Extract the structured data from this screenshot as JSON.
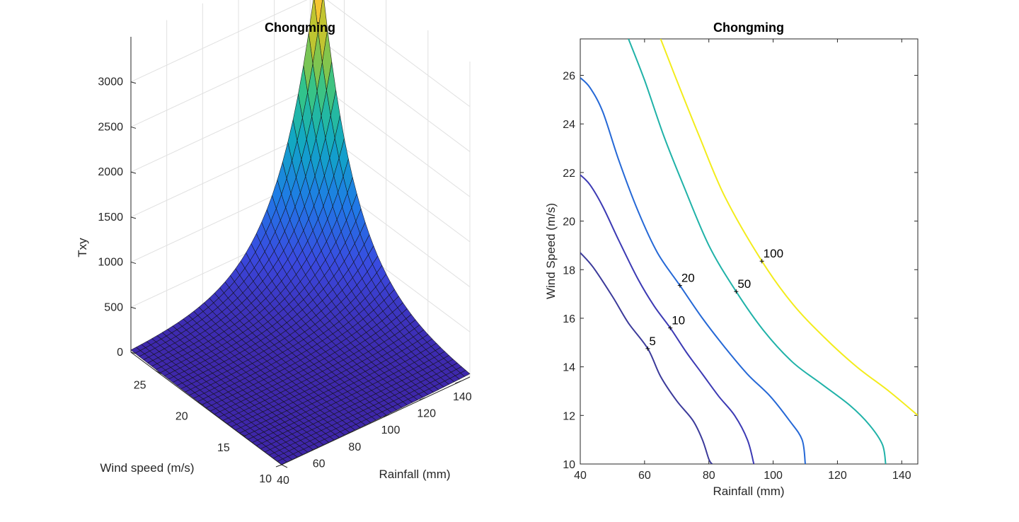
{
  "chart_data": [
    {
      "type": "surface",
      "title": "Chongming",
      "xlabel": "Rainfall (mm)",
      "ylabel": "Wind speed (m/s)",
      "zlabel": "Txy",
      "xlim": [
        40,
        145
      ],
      "ylim": [
        10,
        28
      ],
      "zlim": [
        0,
        3500
      ],
      "x_ticks": [
        "40",
        "60",
        "80",
        "100",
        "120",
        "140"
      ],
      "y_ticks": [
        "10",
        "15",
        "20",
        "25"
      ],
      "z_ticks": [
        "0",
        "500",
        "1000",
        "1500",
        "2000",
        "2500",
        "3000"
      ],
      "z_corner_values": {
        "x_min_y_min": 2,
        "x_max_y_min": 35,
        "x_min_y_max": 25,
        "x_max_y_max": 3450
      },
      "colormap": [
        "#3E26A8",
        "#3A4AE0",
        "#1F7BE6",
        "#11A6C6",
        "#2EC38E",
        "#A9C630",
        "#F5C333",
        "#F9E51A"
      ],
      "grid": true
    },
    {
      "type": "contour",
      "title": "Chongming",
      "xlabel": "Rainfall (mm)",
      "ylabel": "Wind Speed (m/s)",
      "xlim": [
        40,
        145
      ],
      "ylim": [
        10,
        27.5
      ],
      "x_ticks": [
        "40",
        "60",
        "80",
        "100",
        "120",
        "140"
      ],
      "y_ticks": [
        "10",
        "12",
        "14",
        "16",
        "18",
        "20",
        "22",
        "24",
        "26"
      ],
      "levels": [
        {
          "label": "5",
          "color": "#3B3A9A",
          "label_at": [
            61,
            14.75
          ],
          "points": [
            [
              40,
              18.7
            ],
            [
              44,
              18.1
            ],
            [
              50,
              16.9
            ],
            [
              55,
              15.8
            ],
            [
              61,
              14.75
            ],
            [
              65,
              13.6
            ],
            [
              70,
              12.6
            ],
            [
              75,
              11.8
            ],
            [
              78,
              11.0
            ],
            [
              80,
              10.2
            ],
            [
              81,
              10.0
            ]
          ]
        },
        {
          "label": "10",
          "color": "#3C3AB4",
          "label_at": [
            68,
            15.6
          ],
          "points": [
            [
              40,
              21.9
            ],
            [
              43,
              21.5
            ],
            [
              47,
              20.6
            ],
            [
              52,
              19.2
            ],
            [
              58,
              17.6
            ],
            [
              63,
              16.5
            ],
            [
              68,
              15.6
            ],
            [
              73,
              14.6
            ],
            [
              78,
              13.7
            ],
            [
              83,
              12.8
            ],
            [
              88,
              12.0
            ],
            [
              92,
              11.0
            ],
            [
              94,
              10.0
            ]
          ]
        },
        {
          "label": "20",
          "color": "#2568D6",
          "label_at": [
            71,
            17.35
          ],
          "points": [
            [
              40,
              25.9
            ],
            [
              43,
              25.5
            ],
            [
              47,
              24.5
            ],
            [
              52,
              22.5
            ],
            [
              58,
              20.4
            ],
            [
              64,
              18.7
            ],
            [
              71,
              17.35
            ],
            [
              78,
              16.0
            ],
            [
              85,
              14.8
            ],
            [
              92,
              13.7
            ],
            [
              99,
              12.8
            ],
            [
              105,
              11.8
            ],
            [
              109,
              11.0
            ],
            [
              110,
              10.0
            ]
          ]
        },
        {
          "label": "50",
          "color": "#20B2A8",
          "label_at": [
            88.5,
            17.1
          ],
          "points": [
            [
              55,
              27.5
            ],
            [
              60,
              25.8
            ],
            [
              66,
              23.5
            ],
            [
              72,
              21.5
            ],
            [
              80,
              19.0
            ],
            [
              88.5,
              17.1
            ],
            [
              97,
              15.5
            ],
            [
              106,
              14.2
            ],
            [
              115,
              13.3
            ],
            [
              124,
              12.4
            ],
            [
              130,
              11.6
            ],
            [
              134,
              10.8
            ],
            [
              135,
              10.0
            ]
          ]
        },
        {
          "label": "100",
          "color": "#F3EC1C",
          "label_at": [
            96.5,
            18.35
          ],
          "points": [
            [
              65,
              27.5
            ],
            [
              70,
              25.8
            ],
            [
              77,
              23.5
            ],
            [
              85,
              21.0
            ],
            [
              96.5,
              18.35
            ],
            [
              106,
              16.6
            ],
            [
              116,
              15.2
            ],
            [
              126,
              14.0
            ],
            [
              136,
              13.0
            ],
            [
              145,
              12.0
            ]
          ]
        }
      ]
    }
  ]
}
